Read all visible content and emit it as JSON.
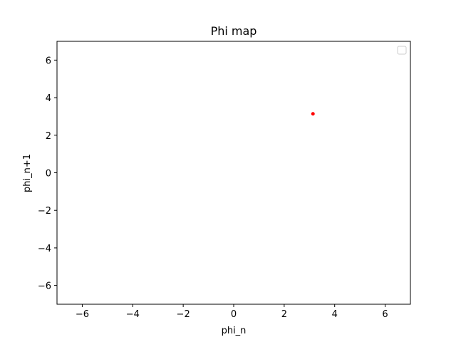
{
  "chart_data": {
    "type": "scatter",
    "title": "Phi map",
    "xlabel": "phi_n",
    "ylabel": "phi_n+1",
    "xlim": [
      -7,
      7
    ],
    "ylim": [
      -7,
      7
    ],
    "xticks": [
      -6,
      -4,
      -2,
      0,
      2,
      4,
      6
    ],
    "yticks": [
      -6,
      -4,
      -2,
      0,
      2,
      4,
      6
    ],
    "grid": false,
    "legend": "upper-right",
    "series": [
      {
        "color": "#ff0000",
        "points": [
          {
            "x": 3.14,
            "y": 3.14
          }
        ]
      }
    ]
  }
}
